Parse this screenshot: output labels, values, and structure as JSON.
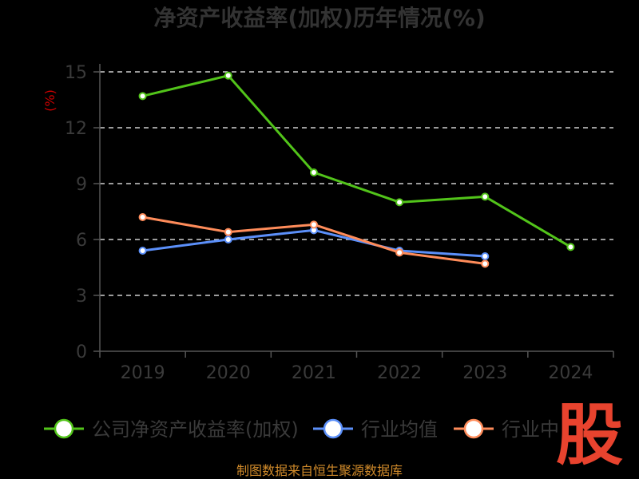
{
  "chart_data": {
    "type": "line",
    "title": "净资产收益率(加权)历年情况(%)",
    "ylabel": "(%)",
    "categories": [
      "2019",
      "2020",
      "2021",
      "2022",
      "2023",
      "2024"
    ],
    "y_ticks": [
      "0",
      "3",
      "6",
      "9",
      "12",
      "15"
    ],
    "ylim": [
      0,
      15
    ],
    "grid": true,
    "legend_position": "bottom",
    "series": [
      {
        "name": "公司净资产收益率(加权)",
        "color": "#52c41a",
        "values": [
          13.7,
          14.8,
          9.6,
          8.0,
          8.3,
          5.6
        ]
      },
      {
        "name": "行业均值",
        "color": "#5b8ff9",
        "values": [
          5.4,
          6.0,
          6.5,
          5.4,
          5.1,
          null
        ]
      },
      {
        "name": "行业中",
        "color": "#ff8c5a",
        "values": [
          7.2,
          6.4,
          6.8,
          5.3,
          4.7,
          null
        ]
      }
    ]
  },
  "watermark": "股",
  "source": "制图数据来自恒生聚源数据库"
}
